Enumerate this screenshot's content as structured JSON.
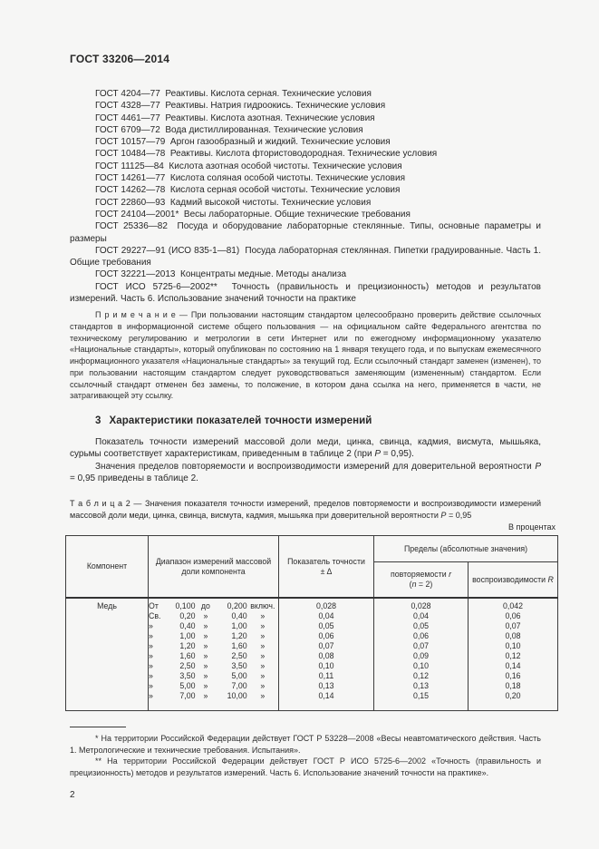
{
  "doc": {
    "header": "ГОСТ 33206—2014",
    "page_number": "2"
  },
  "references": {
    "items": [
      "ГОСТ 4204—77  Реактивы. Кислота серная. Технические условия",
      "ГОСТ 4328—77  Реактивы. Натрия гидроокись. Технические условия",
      "ГОСТ 4461—77  Реактивы. Кислота азотная. Технические условия",
      "ГОСТ 6709—72  Вода дистиллированная. Технические условия",
      "ГОСТ 10157—79  Аргон газообразный и жидкий. Технические условия",
      "ГОСТ 10484—78  Реактивы. Кислота фтористоводородная. Технические условия",
      "ГОСТ 11125—84  Кислота азотная особой чистоты. Технические условия",
      "ГОСТ 14261—77  Кислота соляная особой чистоты. Технические условия",
      "ГОСТ 14262—78  Кислота серная особой чистоты. Технические условия",
      "ГОСТ 22860—93  Кадмий высокой чистоты. Технические условия",
      "ГОСТ 24104—2001*  Весы лабораторные. Общие технические требования",
      "ГОСТ 25336—82  Посуда и оборудование лабораторные стеклянные. Типы, основные параметры и размеры",
      "ГОСТ 29227—91 (ИСО 835-1—81)  Посуда лабораторная стеклянная. Пипетки градуированные. Часть 1. Общие требования",
      "ГОСТ 32221—2013  Концентраты медные. Методы анализа",
      "ГОСТ ИСО 5725-6—2002**  Точность (правильность и прецизионность) методов и результатов измерений. Часть 6. Использование значений точности на практике"
    ]
  },
  "note": {
    "label": "П р и м е ч а н и е — ",
    "text": "При пользовании настоящим стандартом целесообразно проверить действие ссылочных стандартов в информационной системе общего пользования — на официальном сайте Федерального агентства по техническому регулированию и метрологии в сети Интернет или по ежегодному информационному указателю «Национальные стандарты», который опубликован по состоянию на 1 января текущего года, и по выпускам ежемесячного информационного указателя «Национальные стандарты» за текущий год. Если ссылочный стандарт заменен (изменен), то при пользовании настоящим стандартом следует руководствоваться заменяющим (измененным) стандартом. Если ссылочный стандарт отменен без замены, то положение, в котором дана ссылка на него, применяется в части, не затрагивающей эту ссылку."
  },
  "section3": {
    "heading_num": "3",
    "heading_text": "Характеристики показателей точности измерений",
    "p1a": "Показатель точности измерений массовой доли меди, цинка, свинца, кадмия, висмута, мышьяка, сурьмы соответствует характеристикам, приведенным в таблице 2 (при ",
    "p1i": "P",
    "p1b": " = 0,95).",
    "p2a": "Значения пределов повторяемости и воспроизводимости измерений для доверительной вероятности ",
    "p2i": "P",
    "p2b": " = 0,95 приведены в таблице 2."
  },
  "table2": {
    "caption_a": "Т а б л и ц а  2 — Значения показателя точности измерений, пределов повторяемости и воспроизводимости измерений массовой доли меди, цинка, свинца, висмута, кадмия, мышьяка при доверительной вероятности ",
    "caption_i": "P",
    "caption_b": " = 0,95",
    "units_note": "В процентах",
    "headers": {
      "component": "Компонент",
      "range": "Диапазон измерений массовой доли компонента",
      "precision_l1": "Показатель точности",
      "precision_l2": "± Δ",
      "limits": "Пределы (абсолютные значения)",
      "repeat_l1a": "повторяемости ",
      "repeat_l1b": "r",
      "repeat_l2a": "(",
      "repeat_l2b": "n",
      "repeat_l2c": " = 2)",
      "reprod_a": "воспроизводимости ",
      "reprod_b": "R"
    },
    "component": "Медь",
    "rows": [
      {
        "range": [
          "От",
          "0,100",
          "до",
          "0,200",
          "включ."
        ],
        "delta": "0,028",
        "r": "0,028",
        "R": "0,042"
      },
      {
        "range": [
          "Св.",
          "0,20",
          "»",
          "0,40",
          "»"
        ],
        "delta": "0,04",
        "r": "0,04",
        "R": "0,06"
      },
      {
        "range": [
          "»",
          "0,40",
          "»",
          "1,00",
          "»"
        ],
        "delta": "0,05",
        "r": "0,05",
        "R": "0,07"
      },
      {
        "range": [
          "»",
          "1,00",
          "»",
          "1,20",
          "»"
        ],
        "delta": "0,06",
        "r": "0,06",
        "R": "0,08"
      },
      {
        "range": [
          "»",
          "1,20",
          "»",
          "1,60",
          "»"
        ],
        "delta": "0,07",
        "r": "0,07",
        "R": "0,10"
      },
      {
        "range": [
          "»",
          "1,60",
          "»",
          "2,50",
          "»"
        ],
        "delta": "0,08",
        "r": "0,09",
        "R": "0,12"
      },
      {
        "range": [
          "»",
          "2,50",
          "»",
          "3,50",
          "»"
        ],
        "delta": "0,10",
        "r": "0,10",
        "R": "0,14"
      },
      {
        "range": [
          "»",
          "3,50",
          "»",
          "5,00",
          "»"
        ],
        "delta": "0,11",
        "r": "0,12",
        "R": "0,16"
      },
      {
        "range": [
          "»",
          "5,00",
          "»",
          "7,00",
          "»"
        ],
        "delta": "0,13",
        "r": "0,13",
        "R": "0,18"
      },
      {
        "range": [
          "»",
          "7,00",
          "»",
          "10,00",
          "»"
        ],
        "delta": "0,14",
        "r": "0,15",
        "R": "0,20"
      }
    ]
  },
  "footnotes": {
    "fn1": "* На территории Российской Федерации действует ГОСТ Р 53228—2008 «Весы неавтоматического действия. Часть 1. Метрологические и технические требования. Испытания».",
    "fn2": "** На территории Российской Федерации действует ГОСТ Р ИСО 5725-6—2002 «Точность (правильность и прецизионность) методов и результатов измерений. Часть 6. Использование значений точности на практике»."
  }
}
